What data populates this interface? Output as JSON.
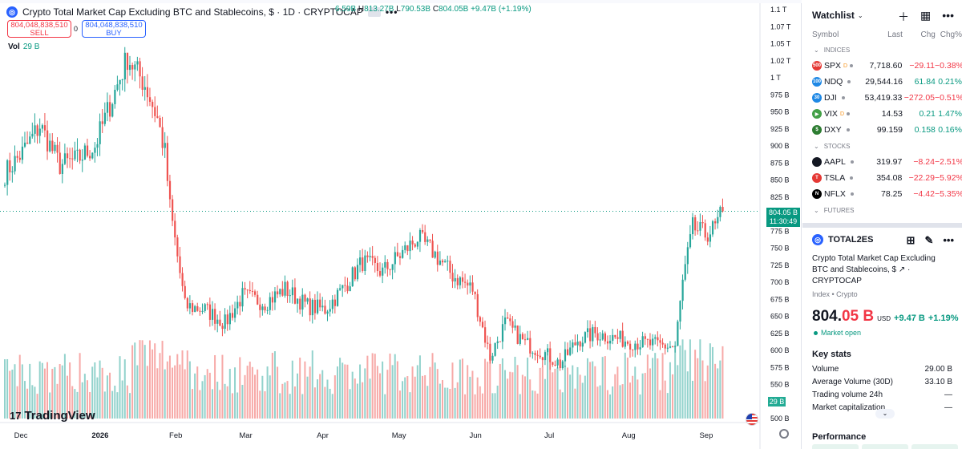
{
  "legend": {
    "title": "Crypto Total Market Cap Excluding BTC and Stablecoins, $ · 1D · CRYPTOCAP",
    "dots": "•••",
    "ohlc": [
      {
        "k": "",
        "v": "6.59B"
      },
      {
        "k": "H",
        "v": "813.27B"
      },
      {
        "k": "L",
        "v": "790.53B"
      },
      {
        "k": "C",
        "v": "804.05B"
      },
      {
        "k": "",
        "v": "+9.47B (+1.19%)"
      }
    ]
  },
  "trade": {
    "sell_price": "804,048,838,510",
    "sell_label": "SELL",
    "spread": "0",
    "buy_price": "804,048,838,510",
    "buy_label": "BUY"
  },
  "volume": {
    "label": "Vol",
    "value": "29 B",
    "axis_label": "29 B"
  },
  "brand": "TradingView",
  "price_axis": {
    "ticks": [
      "1.1 T",
      "1.07 T",
      "1.05 T",
      "1.02 T",
      "1 T",
      "975 B",
      "950 B",
      "925 B",
      "900 B",
      "875 B",
      "850 B",
      "825 B",
      "775 B",
      "750 B",
      "725 B",
      "700 B",
      "675 B",
      "650 B",
      "625 B",
      "600 B",
      "575 B",
      "550 B",
      "500 B"
    ],
    "tick_values": [
      1100,
      1075,
      1050,
      1025,
      1000,
      975,
      950,
      925,
      900,
      875,
      850,
      825,
      775,
      750,
      725,
      700,
      675,
      650,
      625,
      600,
      575,
      550,
      500
    ],
    "last_price": "804.05 B",
    "countdown": "11:30:49"
  },
  "time_axis": {
    "labels": [
      "Dec",
      "2026",
      "Feb",
      "Mar",
      "Apr",
      "May",
      "Jun",
      "Jul",
      "Aug",
      "Sep"
    ],
    "bold": [
      false,
      true,
      false,
      false,
      false,
      false,
      false,
      false,
      false,
      false
    ]
  },
  "colors": {
    "up": "#26a69a",
    "down": "#ef5350",
    "accent": "#2962ff",
    "up_text": "#089981",
    "down_text": "#f23645"
  },
  "chart_data": {
    "type": "candlestick",
    "unit": "B USD",
    "ylim": [
      500,
      1100
    ],
    "last": 804.05,
    "anchors": [
      {
        "date": "2025-11-26",
        "close": 860
      },
      {
        "date": "2025-12-03",
        "close": 890
      },
      {
        "date": "2025-12-10",
        "close": 930
      },
      {
        "date": "2025-12-18",
        "close": 872
      },
      {
        "date": "2025-12-25",
        "close": 880
      },
      {
        "date": "2026-01-01",
        "close": 900
      },
      {
        "date": "2026-01-07",
        "close": 960
      },
      {
        "date": "2026-01-14",
        "close": 1030
      },
      {
        "date": "2026-01-21",
        "close": 990
      },
      {
        "date": "2026-01-26",
        "close": 940
      },
      {
        "date": "2026-01-29",
        "close": 890
      },
      {
        "date": "2026-01-31",
        "close": 810
      },
      {
        "date": "2026-02-06",
        "close": 665
      },
      {
        "date": "2026-02-14",
        "close": 660
      },
      {
        "date": "2026-02-22",
        "close": 640
      },
      {
        "date": "2026-03-01",
        "close": 680
      },
      {
        "date": "2026-03-10",
        "close": 670
      },
      {
        "date": "2026-03-18",
        "close": 690
      },
      {
        "date": "2026-03-27",
        "close": 665
      },
      {
        "date": "2026-04-03",
        "close": 660
      },
      {
        "date": "2026-04-10",
        "close": 690
      },
      {
        "date": "2026-04-18",
        "close": 730
      },
      {
        "date": "2026-04-26",
        "close": 715
      },
      {
        "date": "2026-05-03",
        "close": 740
      },
      {
        "date": "2026-05-10",
        "close": 765
      },
      {
        "date": "2026-05-16",
        "close": 745
      },
      {
        "date": "2026-05-24",
        "close": 710
      },
      {
        "date": "2026-06-01",
        "close": 690
      },
      {
        "date": "2026-06-08",
        "close": 590
      },
      {
        "date": "2026-06-14",
        "close": 640
      },
      {
        "date": "2026-06-22",
        "close": 610
      },
      {
        "date": "2026-06-28",
        "close": 600
      },
      {
        "date": "2026-07-06",
        "close": 580
      },
      {
        "date": "2026-07-13",
        "close": 615
      },
      {
        "date": "2026-07-20",
        "close": 625
      },
      {
        "date": "2026-07-28",
        "close": 618
      },
      {
        "date": "2026-08-05",
        "close": 612
      },
      {
        "date": "2026-08-13",
        "close": 608
      },
      {
        "date": "2026-08-21",
        "close": 605
      },
      {
        "date": "2026-08-24",
        "close": 700
      },
      {
        "date": "2026-08-28",
        "close": 780
      },
      {
        "date": "2026-09-02",
        "close": 770
      },
      {
        "date": "2026-09-06",
        "close": 780
      },
      {
        "date": "2026-09-09",
        "close": 804.05
      }
    ]
  },
  "watchlist": {
    "title": "Watchlist",
    "col_symbol": "Symbol",
    "col_last": "Last",
    "col_chg": "Chg",
    "col_chgp": "Chg%",
    "sections": [
      {
        "name": "INDICES",
        "rows": [
          {
            "sym": "SPX",
            "d": "D",
            "last": "7,718.60",
            "chg": "−29.11",
            "chgp": "−0.38%",
            "dir": "neg",
            "logo": "500",
            "color": "#e53935"
          },
          {
            "sym": "NDQ",
            "d": "",
            "last": "29,544.16",
            "chg": "61.84",
            "chgp": "0.21%",
            "dir": "pos",
            "logo": "100",
            "color": "#1e88e5"
          },
          {
            "sym": "DJI",
            "d": "",
            "last": "53,419.33",
            "chg": "−272.05",
            "chgp": "−0.51%",
            "dir": "neg",
            "logo": "30",
            "color": "#1e88e5"
          },
          {
            "sym": "VIX",
            "d": "D",
            "last": "14.53",
            "chg": "0.21",
            "chgp": "1.47%",
            "dir": "pos",
            "logo": "▶",
            "color": "#43a047"
          },
          {
            "sym": "DXY",
            "d": "",
            "last": "99.159",
            "chg": "0.158",
            "chgp": "0.16%",
            "dir": "pos",
            "logo": "$",
            "color": "#2e7d32"
          }
        ]
      },
      {
        "name": "STOCKS",
        "rows": [
          {
            "sym": "AAPL",
            "d": "",
            "last": "319.97",
            "chg": "−8.24",
            "chgp": "−2.51%",
            "dir": "neg",
            "logo": "",
            "color": "#131722"
          },
          {
            "sym": "TSLA",
            "d": "",
            "last": "354.08",
            "chg": "−22.29",
            "chgp": "−5.92%",
            "dir": "neg",
            "logo": "T",
            "color": "#e53935"
          },
          {
            "sym": "NFLX",
            "d": "",
            "last": "78.25",
            "chg": "−4.42",
            "chgp": "−5.35%",
            "dir": "neg",
            "logo": "N",
            "color": "#000000"
          }
        ]
      },
      {
        "name": "FUTURES",
        "rows": []
      }
    ]
  },
  "details": {
    "symbol": "TOTAL2ES",
    "description": "Crypto Total Market Cap Excluding BTC and Stablecoins, $",
    "exchange": "CRYPTOCAP",
    "category": "Index • Crypto",
    "price_main": "804.",
    "price_tail": "05 B",
    "currency": "USD",
    "change": "+9.47 B",
    "change_pct": "+1.19%",
    "market_status": "Market open",
    "key_stats_title": "Key stats",
    "stats": [
      {
        "label": "Volume",
        "value": "29.00 B"
      },
      {
        "label": "Average Volume (30D)",
        "value": "33.10 B"
      },
      {
        "label": "Trading volume 24h",
        "value": "—"
      },
      {
        "label": "Market capitalization",
        "value": "—"
      }
    ],
    "performance_title": "Performance"
  }
}
